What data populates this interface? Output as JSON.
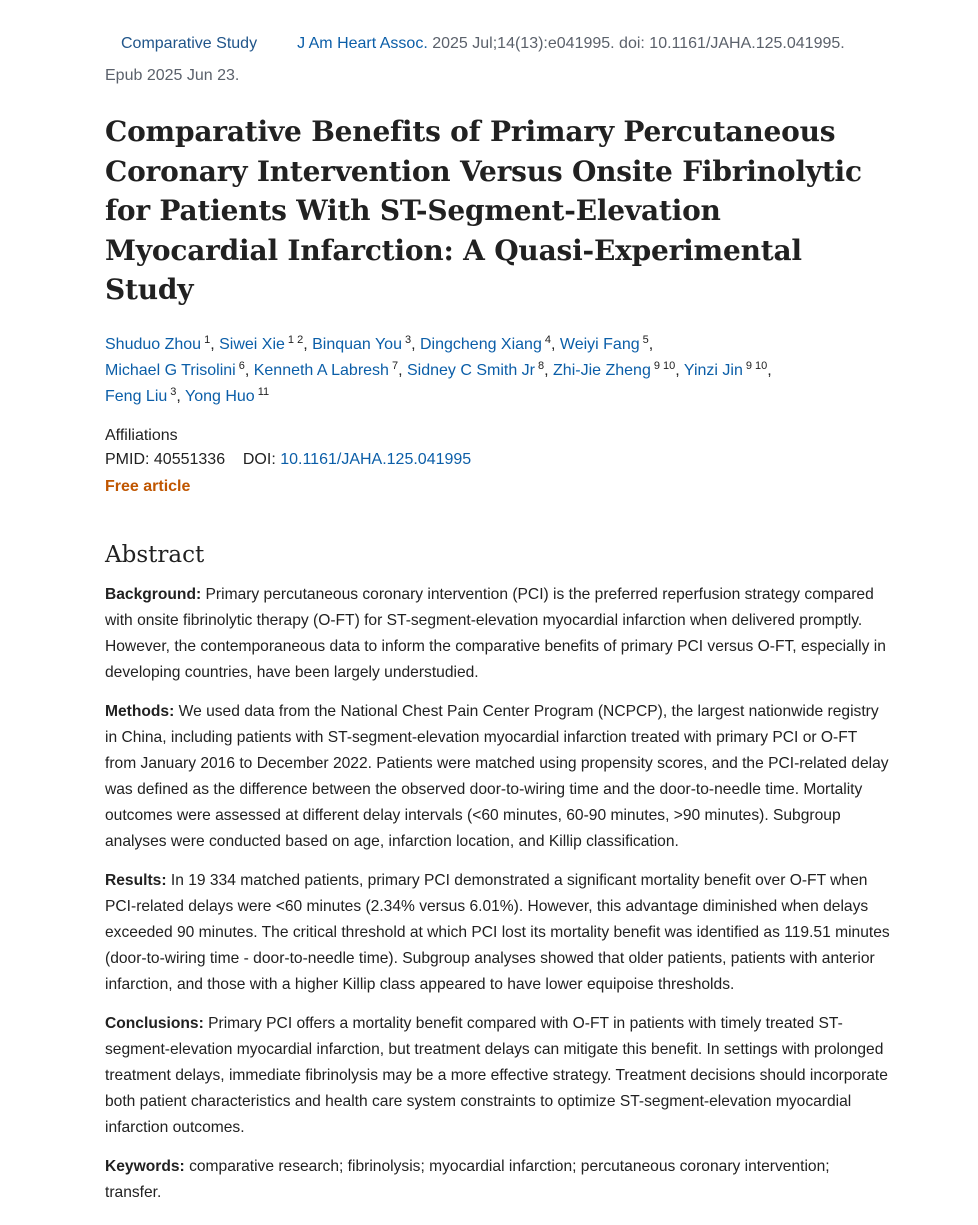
{
  "meta": {
    "article_type": "Comparative Study",
    "journal": "J Am Heart Assoc.",
    "citation": "2025 Jul;14(13):e041995. doi: 10.1161/JAHA.125.041995.",
    "epub": "Epub 2025 Jun 23."
  },
  "title": "Comparative Benefits of Primary Percutaneous Coronary Intervention Versus Onsite Fibrinolytic for Patients With ST-Segment-Elevation Myocardial Infarction: A Quasi-Experimental Study",
  "authors": [
    {
      "name": "Shuduo Zhou",
      "aff": "1"
    },
    {
      "name": "Siwei Xie",
      "aff": "1  2"
    },
    {
      "name": "Binquan You",
      "aff": "3"
    },
    {
      "name": "Dingcheng Xiang",
      "aff": "4"
    },
    {
      "name": "Weiyi Fang",
      "aff": "5"
    },
    {
      "name": "Michael G Trisolini",
      "aff": "6"
    },
    {
      "name": "Kenneth A Labresh",
      "aff": "7"
    },
    {
      "name": "Sidney C Smith Jr",
      "aff": "8"
    },
    {
      "name": "Zhi-Jie Zheng",
      "aff": "9  10"
    },
    {
      "name": "Yinzi Jin",
      "aff": "9  10"
    },
    {
      "name": "Feng Liu",
      "aff": "3"
    },
    {
      "name": "Yong Huo",
      "aff": "11"
    }
  ],
  "affiliations_label": "Affiliations",
  "pmid_label": "PMID:",
  "pmid": "40551336",
  "doi_label": "DOI:",
  "doi": "10.1161/JAHA.125.041995",
  "free_article": "Free article",
  "abstract": {
    "heading": "Abstract",
    "sections": [
      {
        "label": "Background:",
        "text": "Primary percutaneous coronary intervention (PCI) is the preferred reperfusion strategy compared with onsite fibrinolytic therapy (O-FT) for ST-segment-elevation myocardial infarction when delivered promptly. However, the contemporaneous data to inform the comparative benefits of primary PCI versus O-FT, especially in developing countries, have been largely understudied."
      },
      {
        "label": "Methods:",
        "text": "We used data from the National Chest Pain Center Program (NCPCP), the largest nationwide registry in China, including patients with ST-segment-elevation myocardial infarction treated with primary PCI or O-FT from January 2016 to December 2022. Patients were matched using propensity scores, and the PCI-related delay was defined as the difference between the observed door-to-wiring time and the door-to-needle time. Mortality outcomes were assessed at different delay intervals (<60 minutes, 60-90 minutes, >90 minutes). Subgroup analyses were conducted based on age, infarction location, and Killip classification."
      },
      {
        "label": "Results:",
        "text": "In 19 334 matched patients, primary PCI demonstrated a significant mortality benefit over O-FT when PCI-related delays were <60 minutes (2.34% versus 6.01%). However, this advantage diminished when delays exceeded 90 minutes. The critical threshold at which PCI lost its mortality benefit was identified as 119.51 minutes (door-to-wiring time - door-to-needle time). Subgroup analyses showed that older patients, patients with anterior infarction, and those with a higher Killip class appeared to have lower equipoise thresholds."
      },
      {
        "label": "Conclusions:",
        "text": "Primary PCI offers a mortality benefit compared with O-FT in patients with timely treated ST-segment-elevation myocardial infarction, but treatment delays can mitigate this benefit. In settings with prolonged treatment delays, immediate fibrinolysis may be a more effective strategy. Treatment decisions should incorporate both patient characteristics and health care system constraints to optimize ST-segment-elevation myocardial infarction outcomes."
      }
    ]
  },
  "keywords": {
    "label": "Keywords:",
    "text": "comparative research; fibrinolysis; myocardial infarction; percutaneous coronary intervention; transfer."
  }
}
